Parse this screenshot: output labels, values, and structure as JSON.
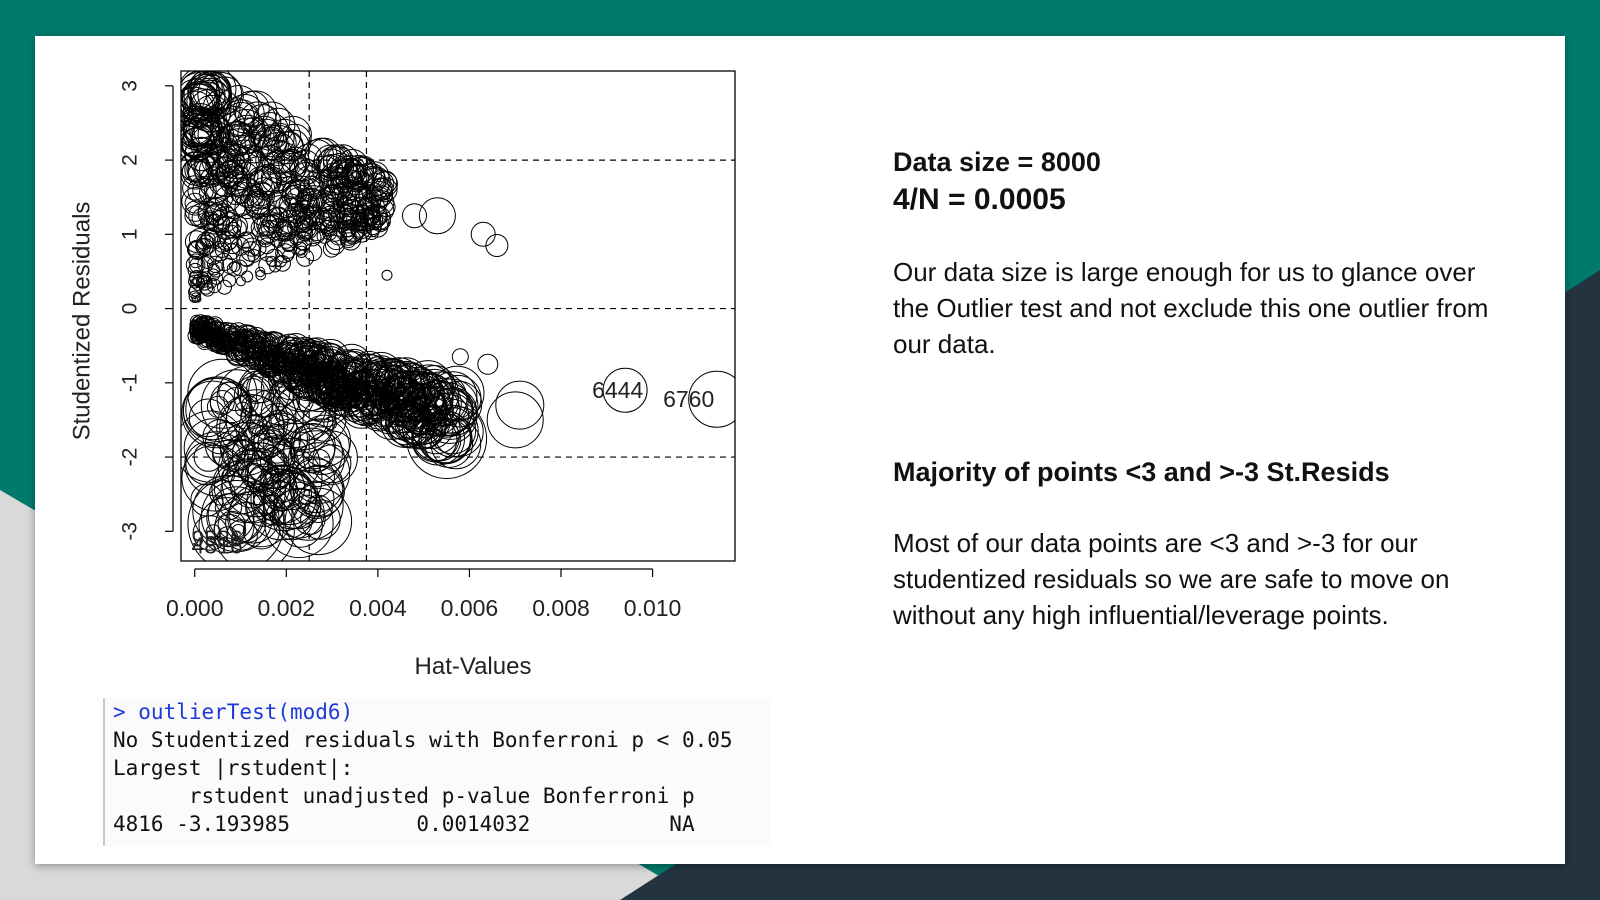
{
  "colors": {
    "teal": "#007a6c",
    "dark": "#233440",
    "gray": "#d9d9d9"
  },
  "chart_data": {
    "type": "scatter",
    "xlabel": "Hat-Values",
    "ylabel": "Studentized Residuals",
    "xlim": [
      -0.0003,
      0.0118
    ],
    "ylim": [
      -3.4,
      3.2
    ],
    "x_ticks": [
      "0.000",
      "0.002",
      "0.004",
      "0.006",
      "0.008",
      "0.010"
    ],
    "y_ticks": [
      "-3",
      "-2",
      "-1",
      "0",
      "1",
      "2",
      "3"
    ],
    "hlines": [
      -2,
      0,
      2
    ],
    "vlines": [
      0.0025,
      0.00375
    ],
    "marker": "open circles sized by Cook's distance",
    "labeled_points": [
      {
        "label": "6444",
        "x": 0.00985,
        "y": -1.1
      },
      {
        "label": "6760",
        "x": 0.0114,
        "y": -1.22
      },
      {
        "label": "9586",
        "x": 0.0011,
        "y": -3.1
      },
      {
        "label": "4816",
        "x": 0.0011,
        "y": -3.19
      }
    ]
  },
  "console": {
    "command": "> outlierTest(mod6)",
    "line1": "No Studentized residuals with Bonferroni p < 0.05",
    "line2": "Largest |rstudent|:",
    "header": "      rstudent unadjusted p-value Bonferroni p",
    "row": "4816 -3.193985          0.0014032           NA"
  },
  "notes": {
    "data_size": "Data size  = 8000",
    "ratio": "4/N = 0.0005",
    "para1": "Our data size is large enough for us to glance over the Outlier test and not exclude this one outlier from our data.",
    "heading2": "Majority of points  <3 and >-3 St.Resids",
    "para2": "Most of our data points are <3 and >-3 for our studentized residuals so we are safe to move on without any high influential/leverage points."
  }
}
